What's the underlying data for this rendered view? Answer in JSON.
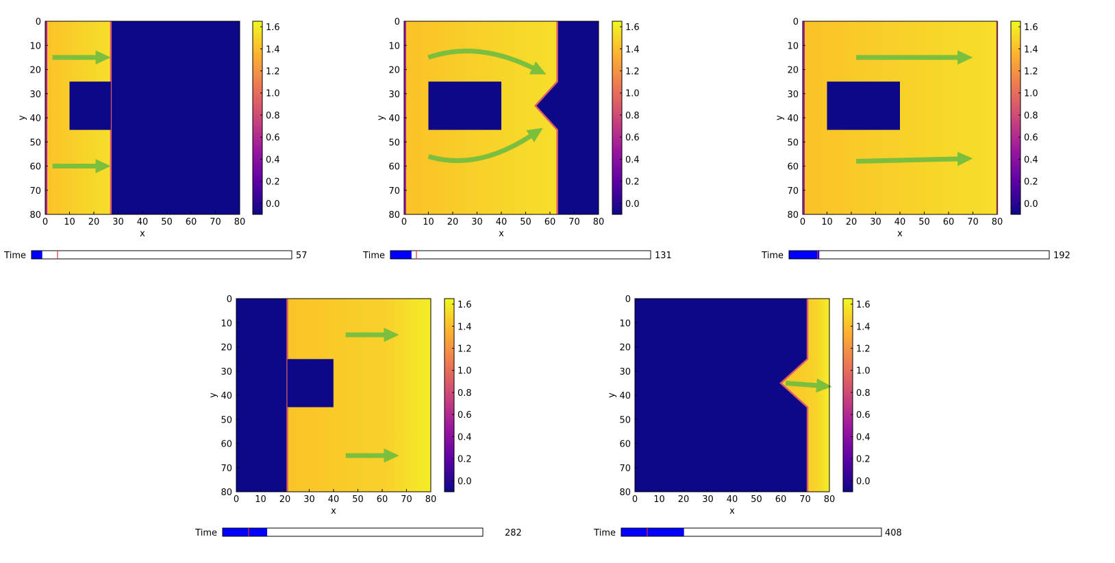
{
  "colormap": {
    "name": "plasma",
    "stops": [
      "#0d0887",
      "#5c01a6",
      "#9c179e",
      "#cc4778",
      "#ed7953",
      "#fdb42f",
      "#f0f921"
    ],
    "range": [
      -0.1,
      1.65
    ]
  },
  "arrow_color": "#7cbf3f",
  "obstacle_color": "#0d0887",
  "slider": {
    "track_fill": "#0000ff",
    "border": "#000000",
    "marker_color": "#e03030"
  },
  "chart_data": [
    {
      "type": "heatmap",
      "xlabel": "x",
      "ylabel": "y",
      "xticks": [
        "0",
        "10",
        "20",
        "30",
        "40",
        "50",
        "60",
        "70",
        "80"
      ],
      "yticks": [
        "0",
        "10",
        "20",
        "30",
        "40",
        "50",
        "60",
        "70",
        "80"
      ],
      "colorbar_ticks": [
        "1.6",
        "1.4",
        "1.2",
        "1.0",
        "0.8",
        "0.6",
        "0.4",
        "0.2",
        "0.0"
      ],
      "front_x": 27,
      "notch_tip_x": 27,
      "fluid_side": "left",
      "obstacle": {
        "x": [
          10,
          27
        ],
        "y": [
          25,
          45
        ]
      },
      "fluid_value": 1.5,
      "time_label": "Time",
      "time_value": "57",
      "time_fill": 0.04,
      "time_marker": 0.1
    },
    {
      "type": "heatmap",
      "xlabel": "x",
      "ylabel": "y",
      "xticks": [
        "0",
        "10",
        "20",
        "30",
        "40",
        "50",
        "60",
        "70",
        "80"
      ],
      "yticks": [
        "0",
        "10",
        "20",
        "30",
        "40",
        "50",
        "60",
        "70",
        "80"
      ],
      "colorbar_ticks": [
        "1.6",
        "1.4",
        "1.2",
        "1.0",
        "0.8",
        "0.6",
        "0.4",
        "0.2",
        "0.0"
      ],
      "front_x": 63,
      "notch_tip_x": 54,
      "fluid_side": "left",
      "obstacle": {
        "x": [
          10,
          40
        ],
        "y": [
          25,
          45
        ]
      },
      "fluid_value": 1.5,
      "time_label": "Time",
      "time_value": "131",
      "time_fill": 0.08,
      "time_marker": 0.1
    },
    {
      "type": "heatmap",
      "xlabel": "x",
      "ylabel": "y",
      "xticks": [
        "0",
        "10",
        "20",
        "30",
        "40",
        "50",
        "60",
        "70",
        "80"
      ],
      "yticks": [
        "0",
        "10",
        "20",
        "30",
        "40",
        "50",
        "60",
        "70",
        "80"
      ],
      "colorbar_ticks": [
        "1.6",
        "1.4",
        "1.2",
        "1.0",
        "0.8",
        "0.6",
        "0.4",
        "0.2",
        "0.0"
      ],
      "front_x": 80,
      "notch_tip_x": 80,
      "fluid_side": "left",
      "obstacle": {
        "x": [
          10,
          40
        ],
        "y": [
          25,
          45
        ]
      },
      "fluid_value": 1.45,
      "time_label": "Time",
      "time_value": "192",
      "time_fill": 0.115,
      "time_marker": 0.11
    },
    {
      "type": "heatmap",
      "xlabel": "x",
      "ylabel": "y",
      "xticks": [
        "0",
        "10",
        "20",
        "30",
        "40",
        "50",
        "60",
        "70",
        "80"
      ],
      "yticks": [
        "0",
        "10",
        "20",
        "30",
        "40",
        "50",
        "60",
        "70",
        "80"
      ],
      "colorbar_ticks": [
        "1.6",
        "1.4",
        "1.2",
        "1.0",
        "0.8",
        "0.6",
        "0.4",
        "0.2",
        "0.0"
      ],
      "front_x": 21,
      "notch_tip_x": 21,
      "fluid_side": "right",
      "obstacle": {
        "x": [
          21,
          40
        ],
        "y": [
          25,
          45
        ]
      },
      "fluid_value": 1.45,
      "time_label": "Time",
      "time_value": "282",
      "time_fill": 0.17,
      "time_marker": 0.1
    },
    {
      "type": "heatmap",
      "xlabel": "x",
      "ylabel": "y",
      "xticks": [
        "0",
        "10",
        "20",
        "30",
        "40",
        "50",
        "60",
        "70",
        "80"
      ],
      "yticks": [
        "0",
        "10",
        "20",
        "30",
        "40",
        "50",
        "60",
        "70",
        "80"
      ],
      "colorbar_ticks": [
        "1.6",
        "1.4",
        "1.2",
        "1.0",
        "0.8",
        "0.6",
        "0.4",
        "0.2",
        "0.0"
      ],
      "front_x": 71,
      "notch_tip_x": 60,
      "fluid_side": "right",
      "obstacle": null,
      "fluid_value": 1.45,
      "time_label": "Time",
      "time_value": "408",
      "time_fill": 0.24,
      "time_marker": 0.1
    }
  ]
}
